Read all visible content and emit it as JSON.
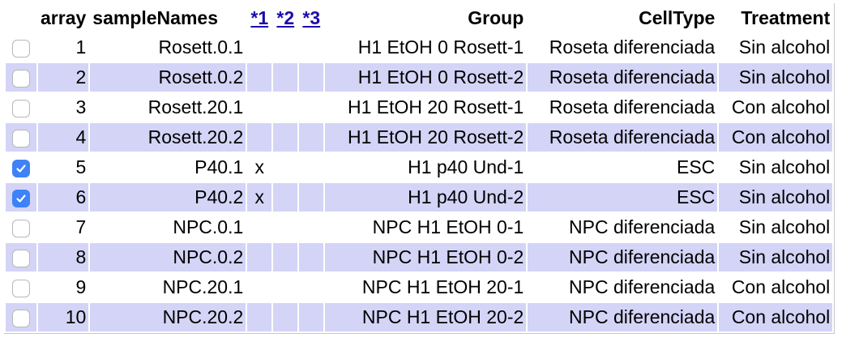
{
  "colors": {
    "alt_row": "#d4d4f7",
    "accent": "#3e82f7"
  },
  "table": {
    "headers": {
      "check": "",
      "array": "array",
      "sampleNames": "sampleNames",
      "link1": "*1",
      "link2": "*2",
      "link3": "*3",
      "group": "Group",
      "celltype": "CellType",
      "treatment": "Treatment"
    },
    "rows": [
      {
        "checked": false,
        "array": "1",
        "sampleNames": "Rosett.0.1",
        "c1": "",
        "c2": "",
        "c3": "",
        "group": "H1 EtOH 0 Rosett-1",
        "celltype": "Roseta diferenciada",
        "treatment": "Sin alcohol"
      },
      {
        "checked": false,
        "array": "2",
        "sampleNames": "Rosett.0.2",
        "c1": "",
        "c2": "",
        "c3": "",
        "group": "H1 EtOH 0 Rosett-2",
        "celltype": "Roseta diferenciada",
        "treatment": "Sin alcohol"
      },
      {
        "checked": false,
        "array": "3",
        "sampleNames": "Rosett.20.1",
        "c1": "",
        "c2": "",
        "c3": "",
        "group": "H1 EtOH 20 Rosett-1",
        "celltype": "Roseta diferenciada",
        "treatment": "Con alcohol"
      },
      {
        "checked": false,
        "array": "4",
        "sampleNames": "Rosett.20.2",
        "c1": "",
        "c2": "",
        "c3": "",
        "group": "H1 EtOH 20 Rosett-2",
        "celltype": "Roseta diferenciada",
        "treatment": "Con alcohol"
      },
      {
        "checked": true,
        "array": "5",
        "sampleNames": "P40.1",
        "c1": "x",
        "c2": "",
        "c3": "",
        "group": "H1 p40 Und-1",
        "celltype": "ESC",
        "treatment": "Sin alcohol"
      },
      {
        "checked": true,
        "array": "6",
        "sampleNames": "P40.2",
        "c1": "x",
        "c2": "",
        "c3": "",
        "group": "H1 p40 Und-2",
        "celltype": "ESC",
        "treatment": "Sin alcohol"
      },
      {
        "checked": false,
        "array": "7",
        "sampleNames": "NPC.0.1",
        "c1": "",
        "c2": "",
        "c3": "",
        "group": "NPC H1 EtOH 0-1",
        "celltype": "NPC diferenciada",
        "treatment": "Sin alcohol"
      },
      {
        "checked": false,
        "array": "8",
        "sampleNames": "NPC.0.2",
        "c1": "",
        "c2": "",
        "c3": "",
        "group": "NPC H1 EtOH 0-2",
        "celltype": "NPC diferenciada",
        "treatment": "Sin alcohol"
      },
      {
        "checked": false,
        "array": "9",
        "sampleNames": "NPC.20.1",
        "c1": "",
        "c2": "",
        "c3": "",
        "group": "NPC H1 EtOH 20-1",
        "celltype": "NPC diferenciada",
        "treatment": "Con alcohol"
      },
      {
        "checked": false,
        "array": "10",
        "sampleNames": "NPC.20.2",
        "c1": "",
        "c2": "",
        "c3": "",
        "group": "NPC H1 EtOH 20-2",
        "celltype": "NPC diferenciada",
        "treatment": "Con alcohol"
      }
    ]
  }
}
